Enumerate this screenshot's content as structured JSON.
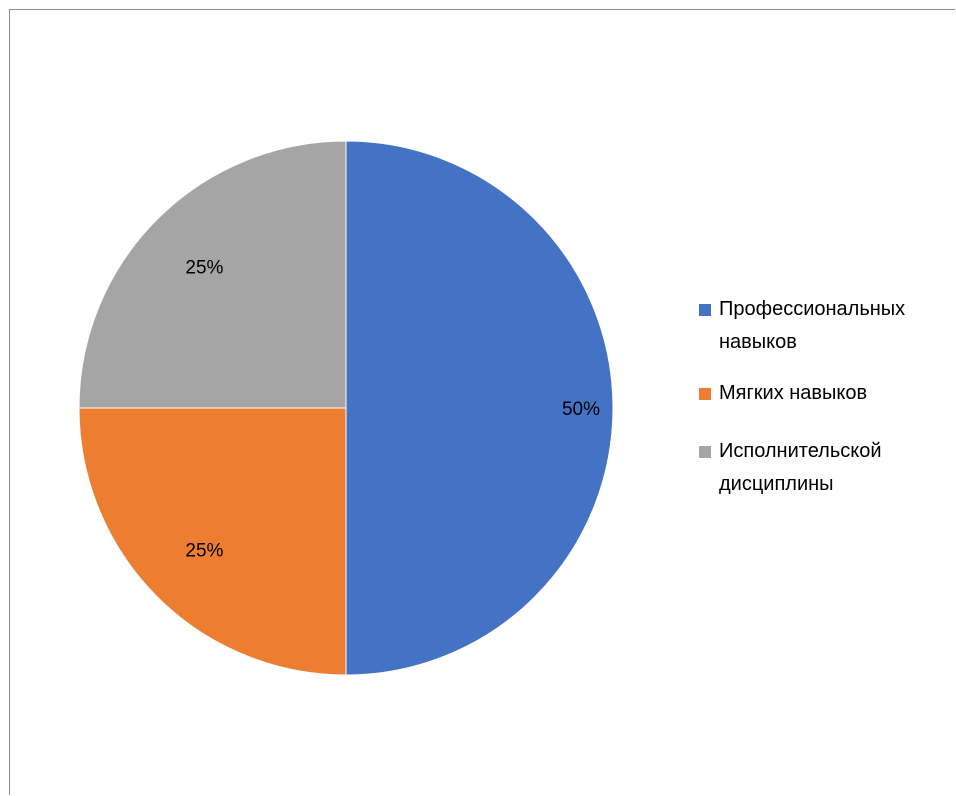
{
  "chart_data": {
    "type": "pie",
    "title": "",
    "slices": [
      {
        "label": "Профессиональных навыков",
        "value": 50,
        "display": "50%",
        "color": "#4472C4"
      },
      {
        "label": "Мягких навыков",
        "value": 25,
        "display": "25%",
        "color": "#ED7D31"
      },
      {
        "label": "Исполнительской дисциплины",
        "value": 25,
        "display": "25%",
        "color": "#A5A5A5"
      }
    ],
    "start_angle_deg": 0,
    "direction": "clockwise",
    "legend_position": "right",
    "data_labels": "inside"
  }
}
